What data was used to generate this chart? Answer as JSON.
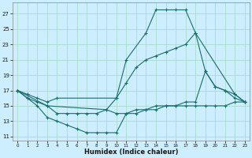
{
  "xlabel": "Humidex (Indice chaleur)",
  "bg_color": "#cceeff",
  "grid_color": "#aaddcc",
  "line_color": "#1a6e6a",
  "xlim": [
    -0.5,
    23.5
  ],
  "ylim": [
    10.5,
    28.5
  ],
  "yticks": [
    11,
    13,
    15,
    17,
    19,
    21,
    23,
    25,
    27
  ],
  "xticks": [
    0,
    1,
    2,
    3,
    4,
    5,
    6,
    7,
    8,
    9,
    10,
    11,
    12,
    13,
    14,
    15,
    16,
    17,
    18,
    19,
    20,
    21,
    22,
    23
  ],
  "line1_x": [
    0,
    1,
    2,
    3,
    4,
    10,
    11,
    13,
    14,
    15,
    16,
    17,
    18,
    22,
    23
  ],
  "line1_y": [
    17,
    16.5,
    16,
    15.5,
    16,
    16,
    21,
    24.5,
    27.5,
    27.5,
    27.5,
    27.5,
    24.5,
    16.5,
    15.5
  ],
  "line2_x": [
    0,
    1,
    2,
    3,
    4,
    5,
    6,
    7,
    8,
    9,
    10,
    11,
    12,
    13,
    14,
    15,
    16,
    17,
    18,
    19,
    20,
    21,
    22,
    23
  ],
  "line2_y": [
    17,
    16,
    15,
    13.5,
    13,
    12.5,
    12,
    11.5,
    11.5,
    11.5,
    11.5,
    14,
    14.5,
    14.5,
    15,
    15,
    15,
    15,
    15,
    15,
    15,
    15,
    15.5,
    15.5
  ],
  "line3_x": [
    0,
    3,
    4,
    5,
    6,
    7,
    8,
    9,
    10,
    11,
    12,
    13,
    14,
    15,
    16,
    17,
    18,
    19,
    20,
    21,
    22,
    23
  ],
  "line3_y": [
    17,
    15,
    14,
    14,
    14,
    14,
    14,
    14.5,
    16,
    18,
    20,
    21,
    21.5,
    22,
    22.5,
    23,
    24.5,
    19.5,
    17.5,
    17,
    16.5,
    15.5
  ],
  "line4_x": [
    0,
    1,
    2,
    3,
    9,
    10,
    11,
    12,
    13,
    14,
    15,
    16,
    17,
    18,
    19,
    20,
    21,
    22,
    23
  ],
  "line4_y": [
    17,
    16,
    15.5,
    15,
    14.5,
    14,
    14,
    14,
    14.5,
    14.5,
    15,
    15,
    15.5,
    15.5,
    19.5,
    17.5,
    17,
    16,
    15.5
  ]
}
